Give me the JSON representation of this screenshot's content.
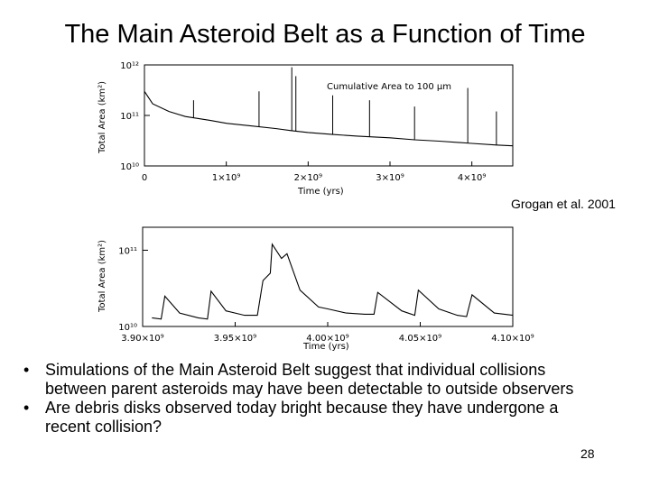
{
  "slide": {
    "title": "The Main Asteroid Belt as a Function of Time",
    "credit": "Grogan et al. 2001",
    "bullets": [
      "Simulations of the Main Asteroid Belt suggest that individual collisions between parent asteroids may have been detectable to outside observers",
      "Are debris disks observed today bright because they have undergone a recent collision?"
    ],
    "bullet_symbol": "•",
    "page_number": "28"
  },
  "chart_data": [
    {
      "type": "line",
      "title": "",
      "annotation": "Cumulative Area to 100 μm",
      "xlabel": "Time (yrs)",
      "ylabel": "Total Area (km²)",
      "yscale": "log",
      "xlim": [
        0,
        4500000000
      ],
      "ylim": [
        10000000000,
        1000000000000
      ],
      "x_tick_labels": [
        "0",
        "1×10⁹",
        "2×10⁹",
        "3×10⁹",
        "4×10⁹"
      ],
      "y_tick_labels": [
        "10¹⁰",
        "10¹¹",
        "10¹²"
      ],
      "series": [
        {
          "x": [
            0,
            100000000,
            300000000,
            500000000,
            800000000,
            1000000000,
            1300000000,
            1600000000,
            1800000000,
            2000000000,
            2300000000,
            2600000000,
            3000000000,
            3300000000,
            3600000000,
            4000000000,
            4300000000,
            4500000000
          ],
          "y": [
            300000000000,
            170000000000,
            120000000000,
            95000000000,
            80000000000,
            70000000000,
            62000000000,
            55000000000,
            50000000000,
            46000000000,
            42000000000,
            39000000000,
            36000000000,
            33000000000,
            31000000000,
            28000000000,
            26000000000,
            25000000000
          ]
        }
      ],
      "spikes": [
        {
          "x": 600000000,
          "y": 200000000000
        },
        {
          "x": 1400000000,
          "y": 300000000000
        },
        {
          "x": 1800000000,
          "y": 900000000000
        },
        {
          "x": 1850000000,
          "y": 600000000000
        },
        {
          "x": 2300000000,
          "y": 250000000000
        },
        {
          "x": 2750000000,
          "y": 200000000000
        },
        {
          "x": 3300000000,
          "y": 150000000000
        },
        {
          "x": 3950000000,
          "y": 350000000000
        },
        {
          "x": 4300000000,
          "y": 120000000000
        }
      ]
    },
    {
      "type": "line",
      "title": "",
      "xlabel": "Time (yrs)",
      "ylabel": "Total Area (km²)",
      "yscale": "log",
      "xlim": [
        3900000000,
        4100000000
      ],
      "ylim": [
        10000000000,
        200000000000
      ],
      "x_tick_labels": [
        "3.90×10⁹",
        "3.95×10⁹",
        "4.00×10⁹",
        "4.05×10⁹",
        "4.10×10⁹"
      ],
      "y_tick_labels": [
        "10¹⁰",
        "10¹¹"
      ],
      "series": [
        {
          "x": [
            3905000000,
            3910000000,
            3912000000,
            3920000000,
            3930000000,
            3935000000,
            3937000000,
            3945000000,
            3955000000,
            3962000000,
            3965000000,
            3969000000,
            3970000000,
            3975000000,
            3978000000,
            3985000000,
            3995000000,
            4000000000,
            4010000000,
            4020000000,
            4025000000,
            4027000000,
            4040000000,
            4047000000,
            4049000000,
            4060000000,
            4070000000,
            4075000000,
            4078000000,
            4090000000,
            4100000000
          ],
          "y": [
            13000000000,
            12500000000,
            25000000000,
            15000000000,
            13000000000,
            12500000000,
            29000000000,
            16000000000,
            14000000000,
            14000000000,
            40000000000,
            50000000000,
            120000000000,
            78000000000,
            90000000000,
            30000000000,
            18000000000,
            17000000000,
            15000000000,
            14500000000,
            14500000000,
            28000000000,
            16000000000,
            14000000000,
            30000000000,
            17000000000,
            14000000000,
            13500000000,
            26000000000,
            15000000000,
            14000000000
          ]
        }
      ]
    }
  ]
}
